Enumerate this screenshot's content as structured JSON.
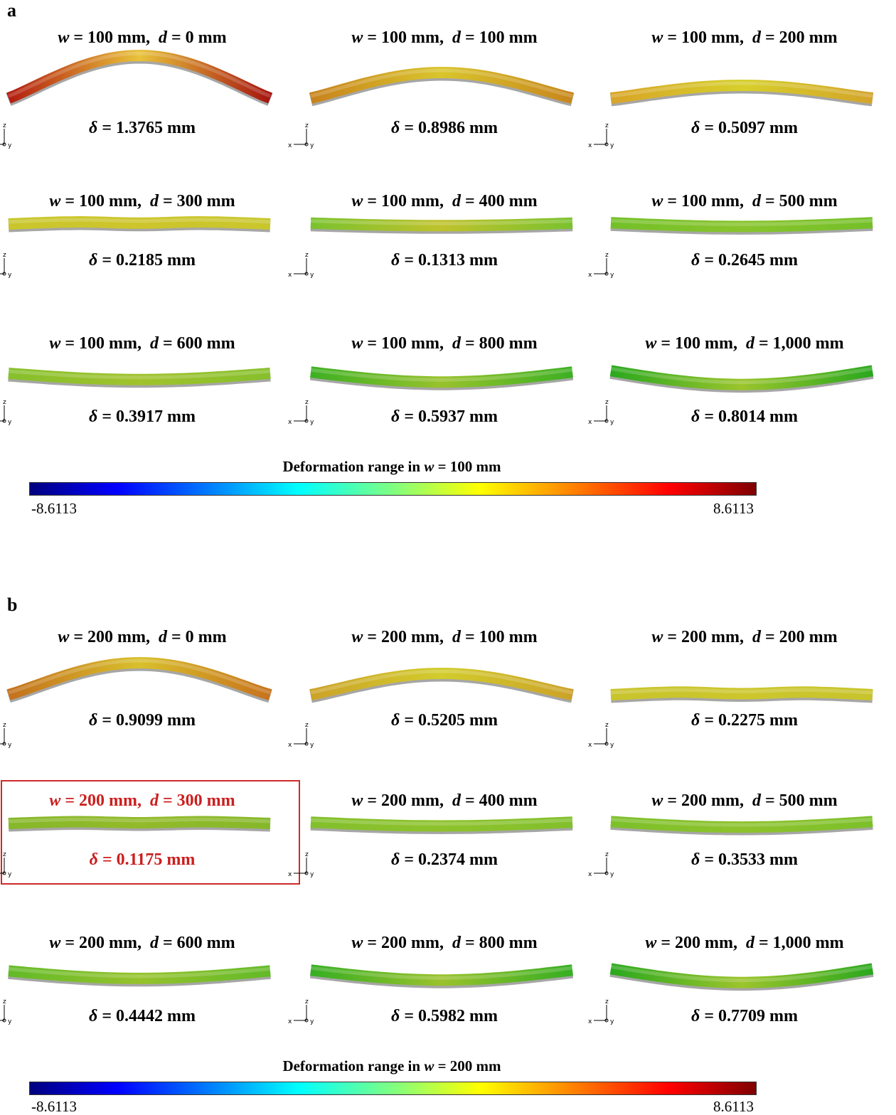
{
  "panels": [
    {
      "label": "a",
      "colorbar": {
        "title_prefix": "Deformation range in",
        "title_var": "w",
        "title_suffix": "= 100 mm",
        "min": "-8.6113",
        "max": "8.6113"
      },
      "cells": [
        {
          "w": "= 100 mm,",
          "d": "= 0 mm",
          "delta": "= 1.3765 mm",
          "shape": "arch",
          "amp": 1.0,
          "colors": [
            "#b31c10",
            "#e8c23a",
            "#a61410"
          ]
        },
        {
          "w": "= 100 mm,",
          "d": "= 100 mm",
          "delta": "= 0.8986 mm",
          "shape": "arch",
          "amp": 0.6,
          "colors": [
            "#c8821c",
            "#d9c52c",
            "#c8861c"
          ]
        },
        {
          "w": "= 100 mm,",
          "d": "= 200 mm",
          "delta": "= 0.5097 mm",
          "shape": "arch",
          "amp": 0.3,
          "colors": [
            "#d8a428",
            "#d6cf2a",
            "#d4a42a"
          ]
        },
        {
          "w": "= 100 mm,",
          "d": "= 300 mm",
          "delta": "= 0.2185 mm",
          "shape": "wave",
          "amp": 0.12,
          "colors": [
            "#c9c62c",
            "#cdc52b",
            "#c9c62c"
          ]
        },
        {
          "w": "= 100 mm,",
          "d": "= 400 mm",
          "delta": "= 0.1313 mm",
          "shape": "dip",
          "amp": 0.1,
          "colors": [
            "#7ac22e",
            "#bfc22c",
            "#7ac22e"
          ]
        },
        {
          "w": "= 100 mm,",
          "d": "= 500 mm",
          "delta": "= 0.2645 mm",
          "shape": "dip",
          "amp": 0.15,
          "colors": [
            "#74c028",
            "#88c42c",
            "#74c028"
          ]
        },
        {
          "w": "= 100 mm,",
          "d": "= 600 mm",
          "delta": "= 0.3917 mm",
          "shape": "dip",
          "amp": 0.25,
          "colors": [
            "#86c02c",
            "#a0c22c",
            "#86c02c"
          ]
        },
        {
          "w": "= 100 mm,",
          "d": "= 800 mm",
          "delta": "= 0.5937 mm",
          "shape": "dip",
          "amp": 0.4,
          "colors": [
            "#3cb022",
            "#98c22c",
            "#3cb022"
          ]
        },
        {
          "w": "= 100 mm,",
          "d": "= 1,000 mm",
          "delta": "= 0.8014 mm",
          "shape": "dip",
          "amp": 0.55,
          "colors": [
            "#2aa81e",
            "#9ac42c",
            "#2aa81e"
          ]
        }
      ]
    },
    {
      "label": "b",
      "colorbar": {
        "title_prefix": "Deformation range in",
        "title_var": "w",
        "title_suffix": "= 200 mm",
        "min": "-8.6113",
        "max": "8.6113"
      },
      "cells": [
        {
          "w": "= 200 mm,",
          "d": "= 0 mm",
          "delta": "= 0.9099 mm",
          "shape": "arch",
          "amp": 0.75,
          "colors": [
            "#c4701c",
            "#d8c02c",
            "#c8721c"
          ]
        },
        {
          "w": "= 200 mm,",
          "d": "= 100 mm",
          "delta": "= 0.5205 mm",
          "shape": "arch",
          "amp": 0.5,
          "colors": [
            "#cca228",
            "#d2cc2c",
            "#cca228"
          ]
        },
        {
          "w": "= 200 mm,",
          "d": "= 200 mm",
          "delta": "= 0.2275 mm",
          "shape": "wave",
          "amp": 0.15,
          "colors": [
            "#c8c42c",
            "#ccc62c",
            "#c8c42c"
          ]
        },
        {
          "w": "= 200 mm,",
          "d": "= 300 mm",
          "delta": "= 0.1175 mm",
          "shape": "wave",
          "amp": 0.1,
          "colors": [
            "#86b82a",
            "#92ba2a",
            "#86b82a"
          ],
          "highlight": true
        },
        {
          "w": "= 200 mm,",
          "d": "= 400 mm",
          "delta": "= 0.2374 mm",
          "shape": "dip",
          "amp": 0.15,
          "colors": [
            "#82c02c",
            "#8ec22c",
            "#82c02c"
          ]
        },
        {
          "w": "= 200 mm,",
          "d": "= 500 mm",
          "delta": "= 0.3533 mm",
          "shape": "dip",
          "amp": 0.22,
          "colors": [
            "#7cc02a",
            "#8ec22c",
            "#7cc02a"
          ]
        },
        {
          "w": "= 200 mm,",
          "d": "= 600 mm",
          "delta": "= 0.4442 mm",
          "shape": "dip",
          "amp": 0.3,
          "colors": [
            "#62ba28",
            "#96c22c",
            "#62ba28"
          ]
        },
        {
          "w": "= 200 mm,",
          "d": "= 800 mm",
          "delta": "= 0.5982 mm",
          "shape": "dip",
          "amp": 0.4,
          "colors": [
            "#36ae22",
            "#9ac22c",
            "#36ae22"
          ]
        },
        {
          "w": "= 200 mm,",
          "d": "= 1,000 mm",
          "delta": "= 0.7709 mm",
          "shape": "dip",
          "amp": 0.55,
          "colors": [
            "#2aa81e",
            "#9cc42c",
            "#2aa81e"
          ]
        }
      ]
    }
  ],
  "axis_labels": {
    "x": "x",
    "y": "y",
    "z": "z"
  }
}
